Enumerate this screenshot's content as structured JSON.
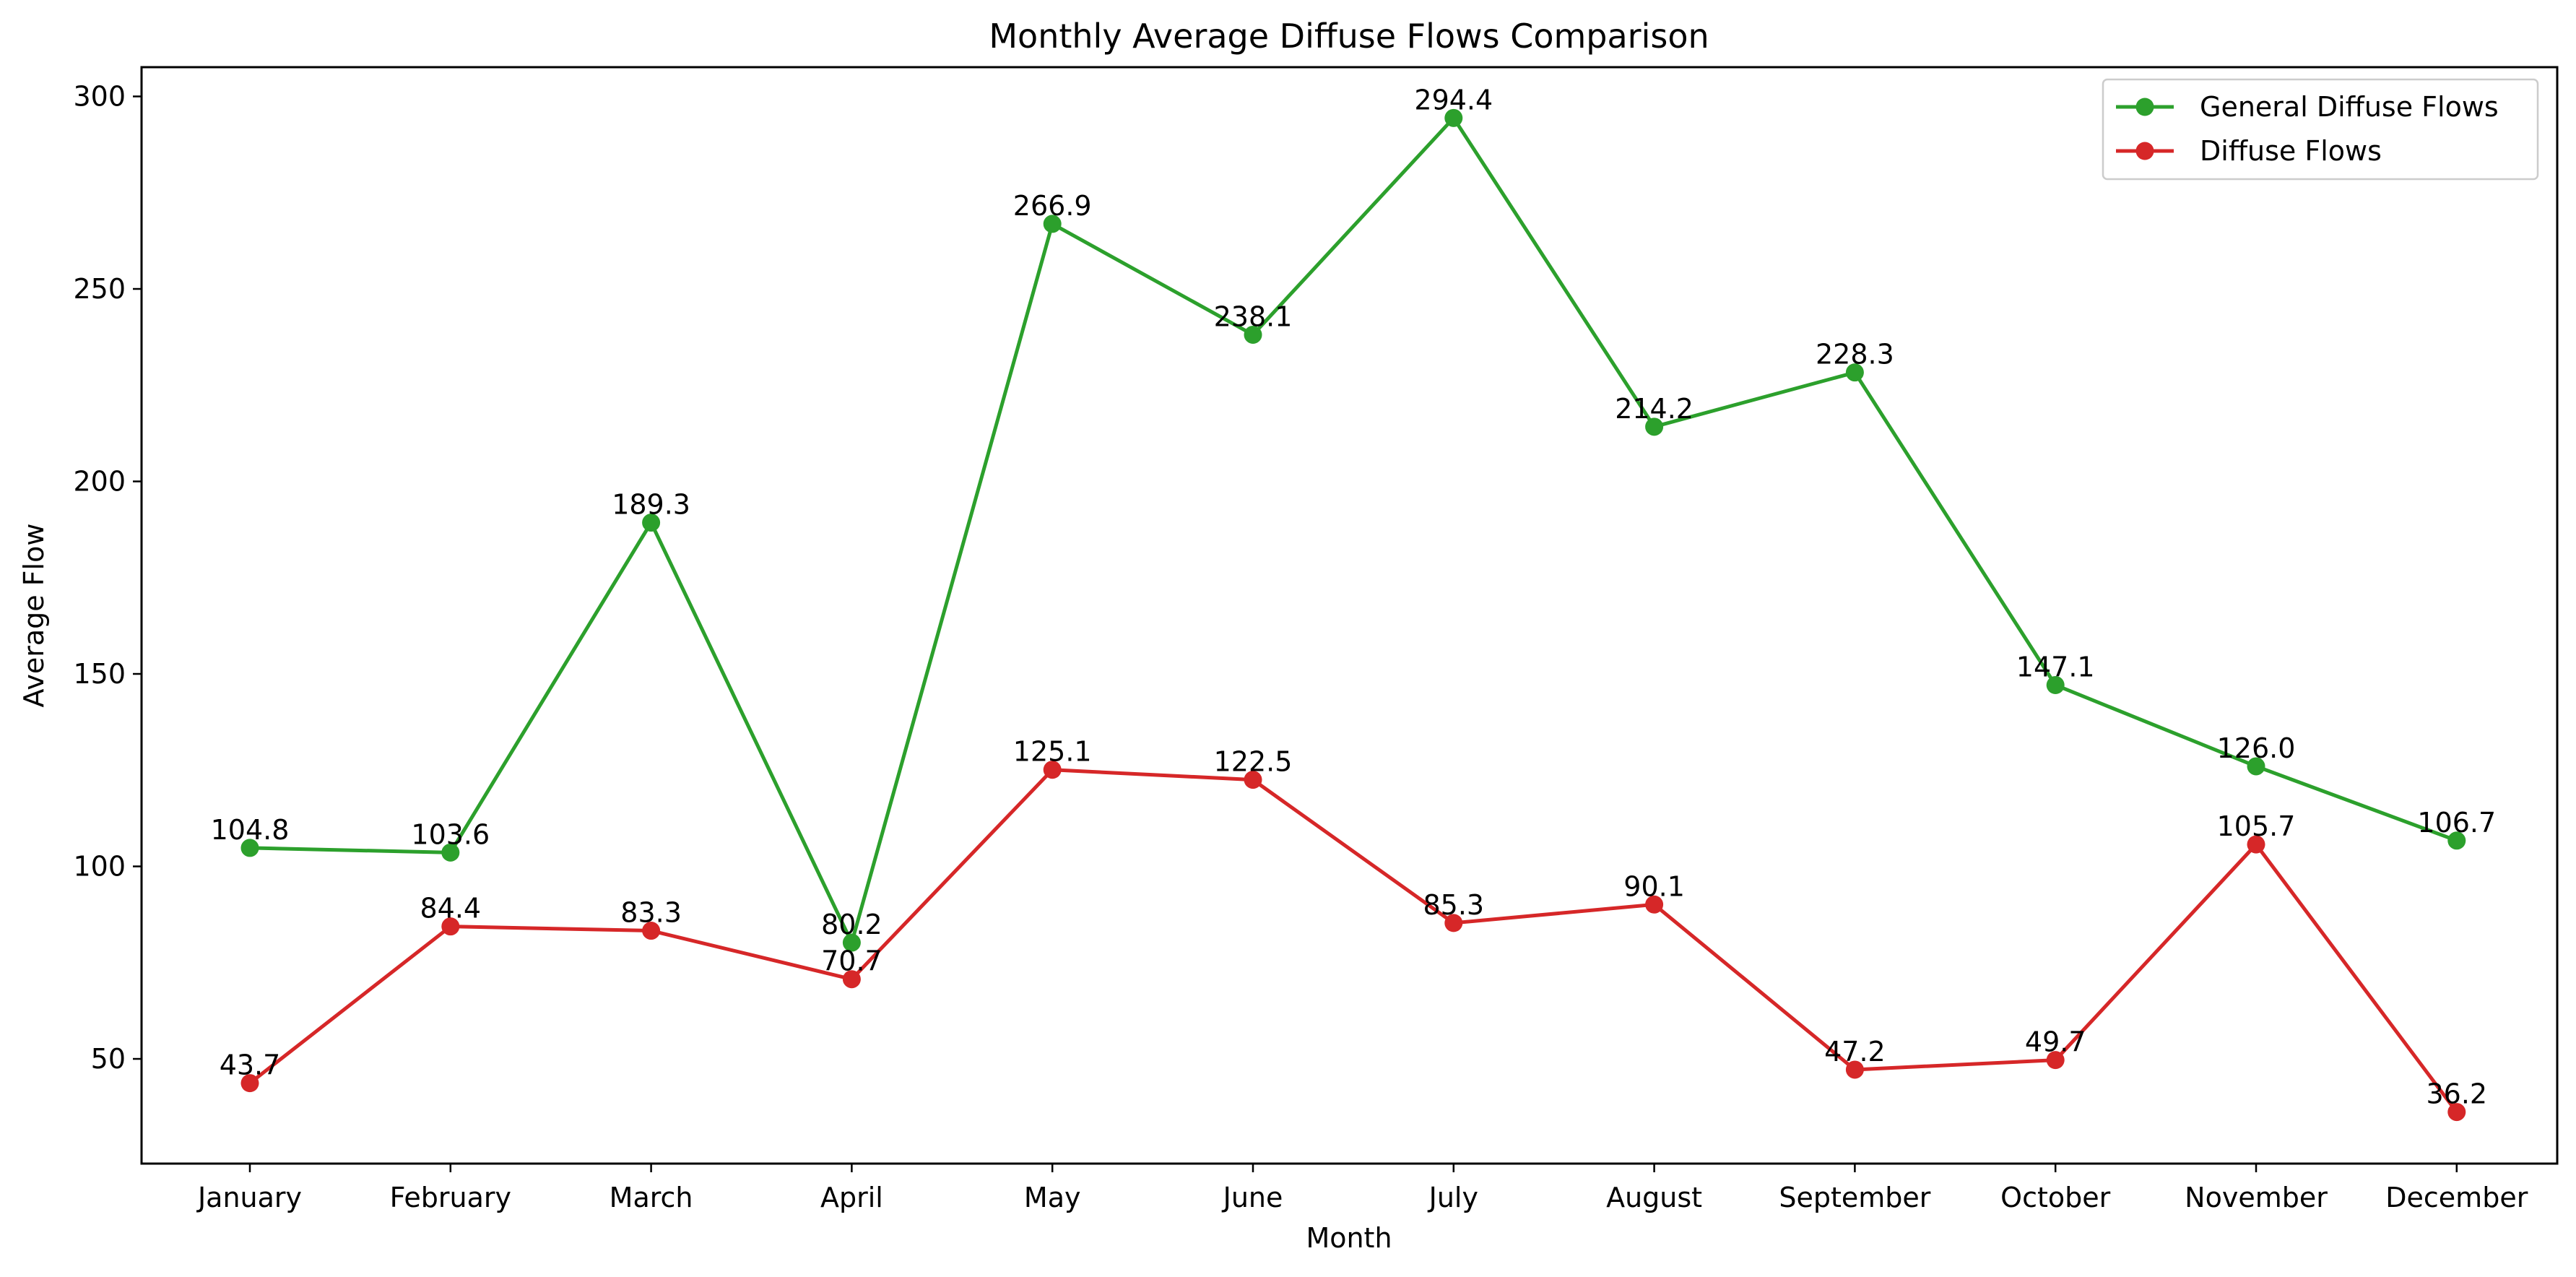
{
  "chart_data": {
    "type": "line",
    "title": "Monthly Average Diffuse Flows Comparison",
    "xlabel": "Month",
    "ylabel": "Average Flow",
    "categories": [
      "January",
      "February",
      "March",
      "April",
      "May",
      "June",
      "July",
      "August",
      "September",
      "October",
      "November",
      "December"
    ],
    "ylim": [
      22.8,
      307.6
    ],
    "yticks": [
      50,
      100,
      150,
      200,
      250,
      300
    ],
    "grid": false,
    "legend_position": "top-right",
    "series": [
      {
        "name": "General Diffuse Flows",
        "color": "#2ca02c",
        "marker": "circle",
        "values": [
          104.8,
          103.6,
          189.3,
          80.2,
          266.9,
          238.1,
          294.4,
          214.2,
          228.3,
          147.1,
          126.0,
          106.7
        ]
      },
      {
        "name": "Diffuse Flows",
        "color": "#d62728",
        "marker": "circle",
        "values": [
          43.7,
          84.4,
          83.3,
          70.7,
          125.1,
          122.5,
          85.3,
          90.1,
          47.2,
          49.7,
          105.7,
          36.2
        ]
      }
    ]
  }
}
